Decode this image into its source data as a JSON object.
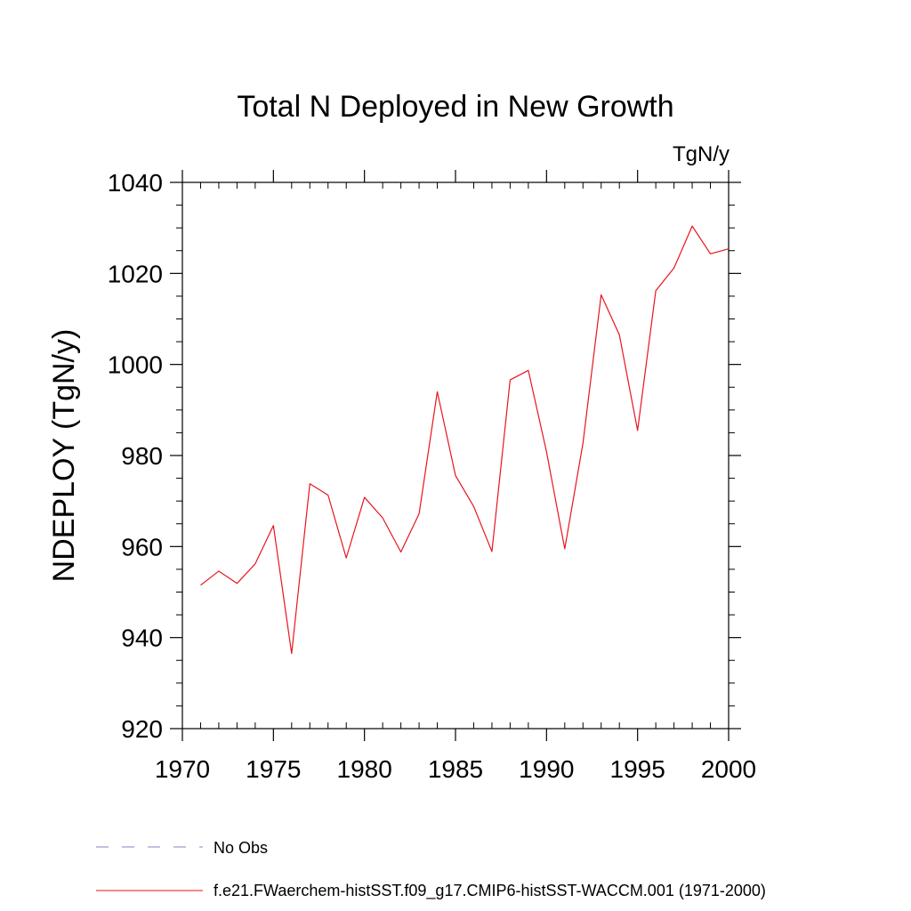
{
  "chart_data": {
    "type": "line",
    "title": "Total N Deployed in New Growth",
    "units": "TgN/y",
    "ylabel": "NDEPLOY  (TgN/y)",
    "xlabel": "",
    "xlim": [
      1970,
      2000
    ],
    "ylim": [
      920,
      1040
    ],
    "x_ticks": [
      1970,
      1975,
      1980,
      1985,
      1990,
      1995,
      2000
    ],
    "y_ticks": [
      920,
      940,
      960,
      980,
      1000,
      1020,
      1040
    ],
    "grid": false,
    "legend": [
      {
        "label": "No Obs",
        "style": "dashed",
        "color": "#8a7fc4"
      },
      {
        "label": "f.e21.FWaerchem-histSST.f09_g17.CMIP6-histSST-WACCM.001 (1971-2000)",
        "style": "solid",
        "color": "#e8141e"
      }
    ],
    "series": [
      {
        "name": "f.e21.FWaerchem-histSST.f09_g17.CMIP6-histSST-WACCM.001 (1971-2000)",
        "color": "#e8141e",
        "x": [
          1971,
          1972,
          1973,
          1974,
          1975,
          1976,
          1977,
          1978,
          1979,
          1980,
          1981,
          1982,
          1983,
          1984,
          1985,
          1986,
          1987,
          1988,
          1989,
          1990,
          1991,
          1992,
          1993,
          1994,
          1995,
          1996,
          1997,
          1998,
          1999,
          2000
        ],
        "y": [
          951.5,
          954.6,
          951.9,
          956.2,
          964.6,
          936.5,
          973.8,
          971.3,
          957.5,
          970.8,
          966.3,
          958.8,
          967.2,
          994.0,
          975.6,
          968.8,
          958.9,
          996.6,
          998.7,
          980.8,
          959.5,
          982.7,
          1015.3,
          1006.5,
          985.5,
          1016.2,
          1021.2,
          1030.4,
          1024.3,
          1025.4
        ]
      }
    ]
  }
}
